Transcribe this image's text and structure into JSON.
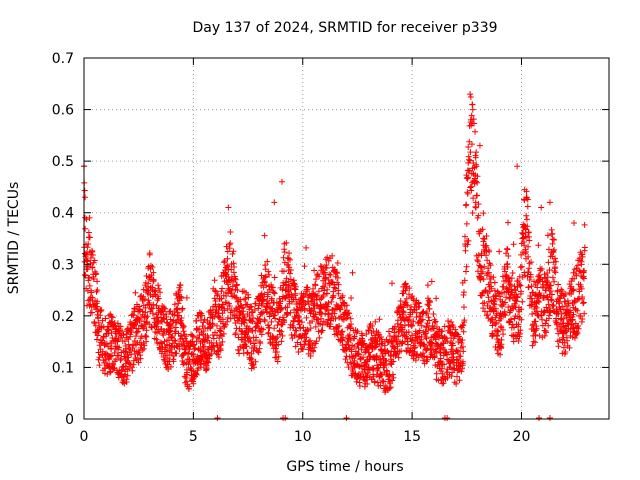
{
  "chart_data": {
    "type": "scatter",
    "title": "Day 137 of 2024, SRMTID for receiver p339",
    "xlabel": "GPS time / hours",
    "ylabel": "SRMTID / TECUs",
    "xlim": [
      0,
      24
    ],
    "ylim": [
      0,
      0.7
    ],
    "xticks": [
      0,
      5,
      10,
      15,
      20
    ],
    "yticks": [
      0,
      0.1,
      0.2,
      0.3,
      0.4,
      0.5,
      0.6,
      0.7
    ],
    "grid": true,
    "marker": "plus",
    "color": "#ff0000",
    "series": [
      {
        "name": "SRMTID",
        "anchors": {
          "x": [
            0.0,
            0.1,
            0.3,
            0.5,
            0.7,
            1.0,
            1.3,
            1.6,
            1.9,
            2.2,
            2.5,
            2.8,
            3.0,
            3.2,
            3.5,
            3.8,
            4.1,
            4.4,
            4.7,
            5.0,
            5.3,
            5.6,
            5.9,
            6.2,
            6.5,
            6.8,
            7.1,
            7.4,
            7.7,
            8.0,
            8.3,
            8.6,
            8.9,
            9.2,
            9.5,
            9.8,
            10.1,
            10.4,
            10.7,
            11.0,
            11.3,
            11.6,
            11.9,
            12.2,
            12.5,
            12.8,
            13.1,
            13.4,
            13.7,
            14.0,
            14.3,
            14.6,
            14.9,
            15.2,
            15.5,
            15.8,
            16.1,
            16.4,
            16.7,
            17.0,
            17.3,
            17.5,
            17.7,
            17.9,
            18.1,
            18.4,
            18.7,
            19.0,
            19.3,
            19.6,
            19.9,
            20.2,
            20.5,
            20.8,
            21.1,
            21.4,
            21.7,
            22.0,
            22.3,
            22.6,
            22.9
          ],
          "y": [
            0.4,
            0.3,
            0.28,
            0.24,
            0.16,
            0.14,
            0.15,
            0.13,
            0.12,
            0.15,
            0.17,
            0.2,
            0.25,
            0.22,
            0.19,
            0.14,
            0.17,
            0.2,
            0.1,
            0.12,
            0.16,
            0.13,
            0.2,
            0.18,
            0.26,
            0.27,
            0.17,
            0.2,
            0.15,
            0.19,
            0.25,
            0.2,
            0.16,
            0.28,
            0.23,
            0.17,
            0.2,
            0.18,
            0.22,
            0.24,
            0.25,
            0.22,
            0.18,
            0.14,
            0.12,
            0.11,
            0.13,
            0.12,
            0.1,
            0.11,
            0.15,
            0.2,
            0.19,
            0.17,
            0.16,
            0.18,
            0.13,
            0.12,
            0.14,
            0.12,
            0.13,
            0.4,
            0.52,
            0.45,
            0.3,
            0.28,
            0.22,
            0.18,
            0.27,
            0.22,
            0.2,
            0.4,
            0.2,
            0.23,
            0.22,
            0.3,
            0.2,
            0.18,
            0.21,
            0.24,
            0.26
          ]
        },
        "outliers": {
          "x": [
            0.0,
            0.05,
            6.6,
            8.7,
            9.05,
            17.65,
            17.75,
            18.1,
            19.8,
            20.9,
            21.3,
            22.4
          ],
          "y": [
            0.49,
            0.43,
            0.41,
            0.42,
            0.46,
            0.63,
            0.61,
            0.53,
            0.49,
            0.41,
            0.42,
            0.38
          ]
        },
        "baseline_points_x": [
          6.1,
          9.1,
          9.2,
          12.0,
          16.5,
          16.6,
          20.8,
          21.3
        ]
      }
    ]
  }
}
